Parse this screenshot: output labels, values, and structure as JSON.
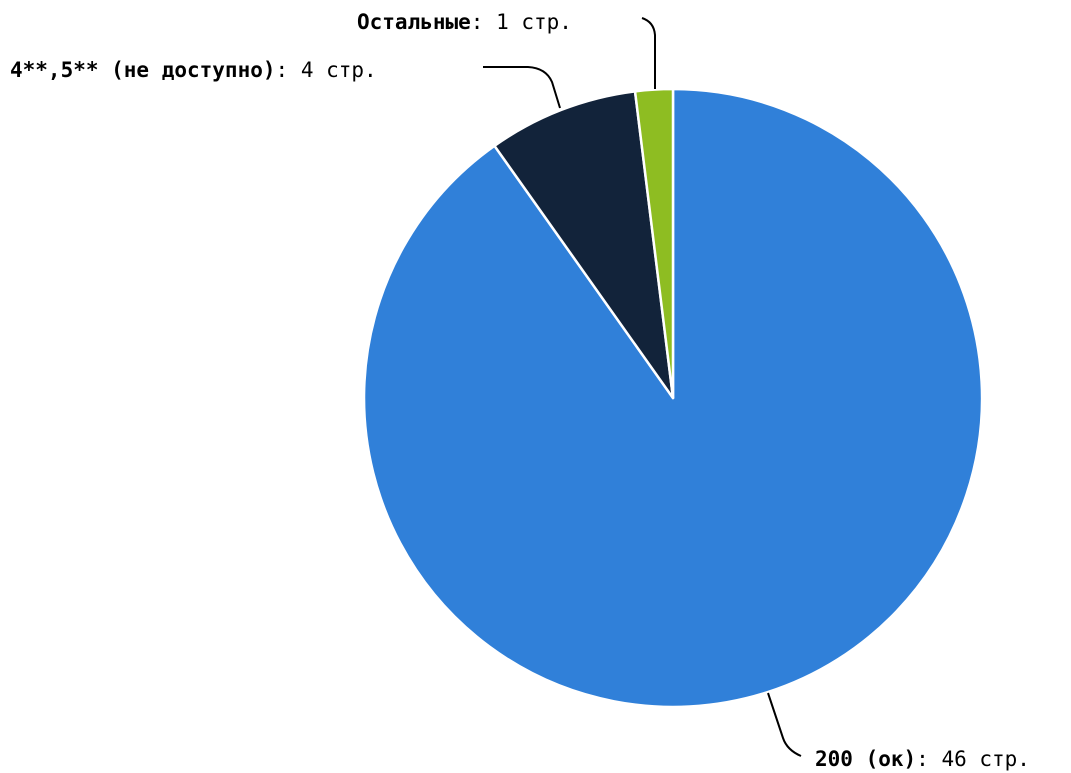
{
  "chart_data": {
    "type": "pie",
    "title": "",
    "unit": "стр.",
    "start_angle_deg": 0,
    "direction": "clockwise",
    "series": [
      {
        "label": "200 (ок)",
        "value": 46,
        "value_text": "46 стр.",
        "color": "#3080d9"
      },
      {
        "label": "4**,5** (не доступно)",
        "value": 4,
        "value_text": "4 стр.",
        "color": "#12233a"
      },
      {
        "label": "Остальные",
        "value": 1,
        "value_text": "1 стр.",
        "color": "#8ebd22"
      }
    ]
  }
}
